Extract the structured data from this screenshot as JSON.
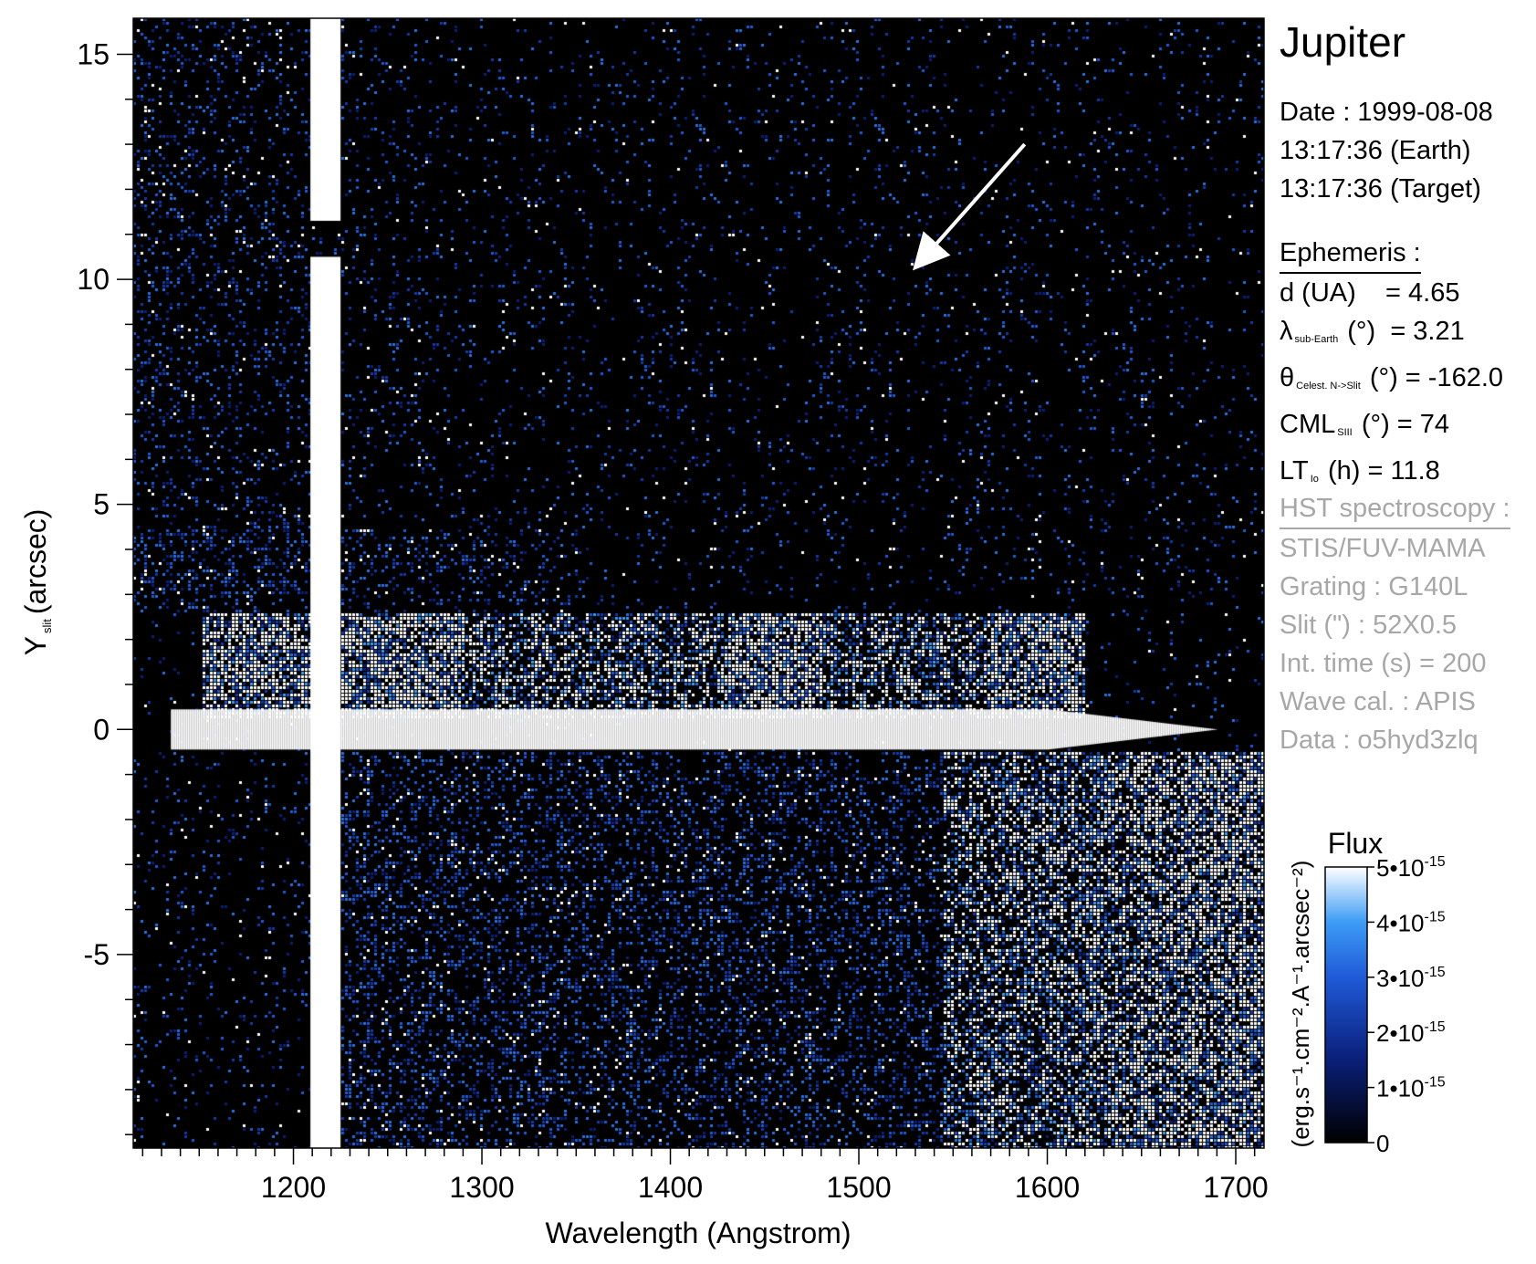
{
  "title": "Jupiter",
  "date": {
    "date_line": "Date : 1999-08-08",
    "earth_line": "13:17:36 (Earth)",
    "target_line": "13:17:36 (Target)"
  },
  "ephemeris": {
    "header": "Ephemeris :",
    "d_prefix": "d (UA)",
    "d_value": "= 4.65",
    "lambda_sym": "λ",
    "lambda_sub": "sub-Earth",
    "lambda_unit": "(°)",
    "lambda_value": "= 3.21",
    "theta_sym": "θ",
    "theta_sub": "Celest. N->Slit",
    "theta_unit": "(°)",
    "theta_value": "= -162.0",
    "cml_sym": "CML",
    "cml_sub": "SIII",
    "cml_unit": "(°)",
    "cml_value": "= 74",
    "lt_sym": "LT",
    "lt_sub": "Io",
    "lt_unit": "(h)",
    "lt_value": "= 11.8"
  },
  "hst": {
    "header": "HST spectroscopy :",
    "lines": [
      "STIS/FUV-MAMA",
      "Grating : G140L",
      "Slit (\") : 52X0.5",
      "Int. time (s) = 200",
      "Wave cal. : APIS",
      "Data : o5hyd3zlq"
    ]
  },
  "colors": {
    "background": "#000000",
    "noise_blue": "#2a6fe0",
    "bright": "#ffffff",
    "grey_text": "#a7a7a7"
  },
  "chart_data": {
    "type": "heatmap",
    "xlabel": "Wavelength (Angstrom)",
    "ylabel_main": "Y",
    "ylabel_sub": "slit",
    "ylabel_unit": "(arcsec)",
    "xlim": [
      1115,
      1715
    ],
    "ylim": [
      -9.3,
      15.8
    ],
    "x_ticks": [
      1200,
      1300,
      1400,
      1500,
      1600,
      1700
    ],
    "y_ticks": [
      -5,
      0,
      5,
      10,
      15
    ],
    "features": {
      "lyman_alpha_line": {
        "x_range": [
          1209,
          1225
        ],
        "y_gap": [
          10.5,
          11.3
        ]
      },
      "central_line": {
        "y": 0,
        "x_range": [
          1135,
          1690
        ]
      },
      "aurora_band": {
        "y_range": [
          0.3,
          2.6
        ],
        "x_range": [
          1150,
          1620
        ]
      },
      "reflected_region": {
        "x_start": 1545,
        "y_range": [
          -9.3,
          -0.5
        ]
      },
      "arrow": {
        "from": [
          1588,
          13.0
        ],
        "to": [
          1535,
          10.5
        ]
      }
    },
    "colorbar": {
      "title": "Flux",
      "unit_label": "(erg.s⁻¹.cm⁻².A⁻¹.arcsec⁻²)",
      "range": [
        0,
        5e-15
      ],
      "tick_values": [
        0,
        1e-15,
        2e-15,
        3e-15,
        4e-15,
        5e-15
      ],
      "tick_labels": [
        "0",
        "1•10",
        "2•10",
        "3•10",
        "4•10",
        "5•10"
      ],
      "tick_exponent": "-15"
    }
  }
}
